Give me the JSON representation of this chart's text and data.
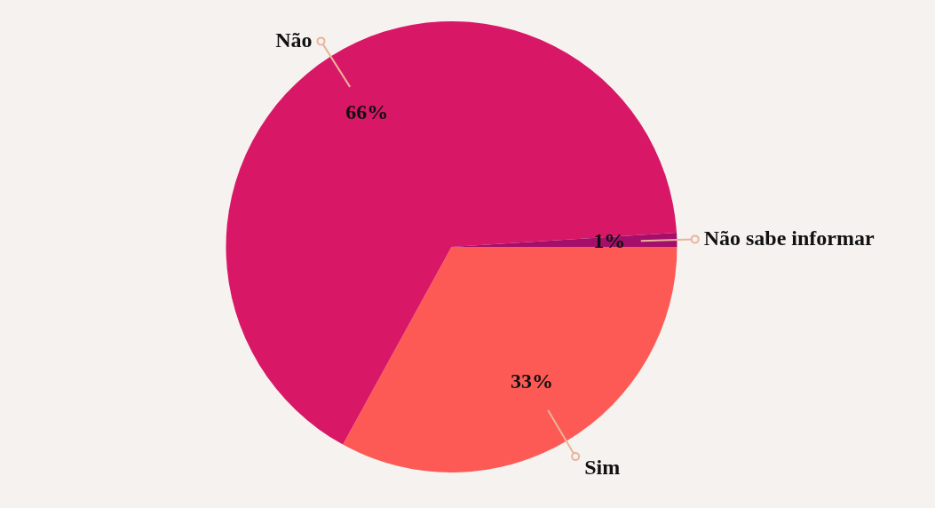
{
  "chart_data": {
    "type": "pie",
    "categories": [
      "Sim",
      "Não",
      "Não sabe informar"
    ],
    "values": [
      33,
      66,
      1
    ],
    "value_labels": [
      "33%",
      "66%",
      "1%"
    ],
    "colors": [
      "#fd5a55",
      "#d81866",
      "#a50f6b"
    ],
    "legend": false
  }
}
